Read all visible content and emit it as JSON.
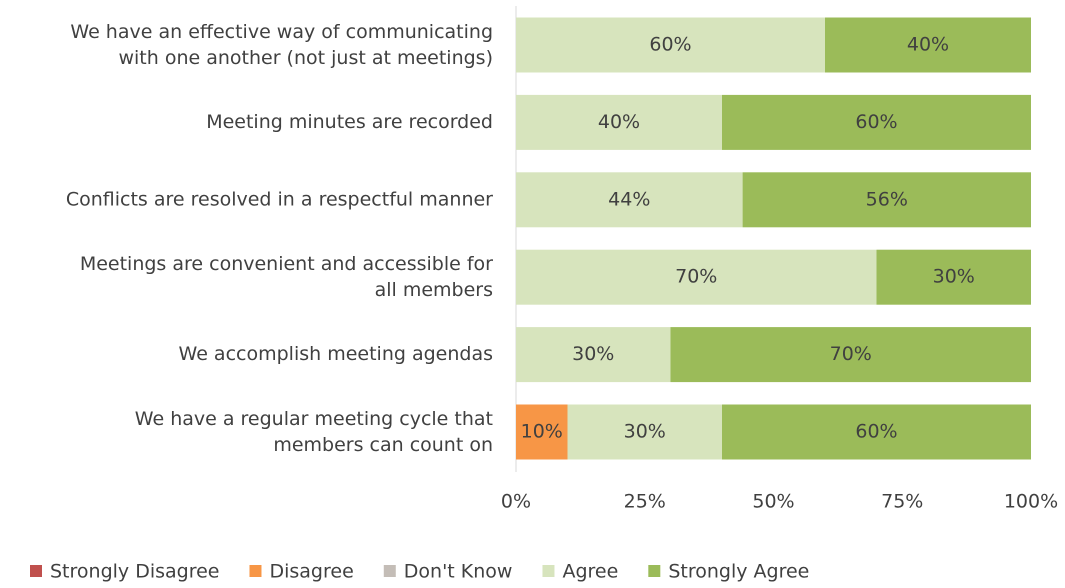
{
  "chart_data": {
    "type": "stacked-bar-horizontal",
    "categories": [
      "We have an effective way of communicating\nwith one another (not just at meetings)",
      "Meeting minutes are recorded",
      "Conflicts are resolved in a respectful manner",
      "Meetings are convenient and accessible for\nall members",
      "We accomplish meeting agendas",
      "We have a regular meeting cycle that\nmembers can count on"
    ],
    "series": [
      {
        "name": "Strongly Disagree",
        "color": "#c0504d",
        "values": [
          0,
          0,
          0,
          0,
          0,
          0
        ],
        "value_labels": [
          null,
          null,
          null,
          null,
          null,
          null
        ]
      },
      {
        "name": "Disagree",
        "color": "#f79646",
        "values": [
          0,
          0,
          0,
          0,
          0,
          10
        ],
        "value_labels": [
          null,
          null,
          null,
          null,
          null,
          "10%"
        ]
      },
      {
        "name": "Don't Know",
        "color": "#c4bdb7",
        "values": [
          0,
          0,
          0,
          0,
          0,
          0
        ],
        "value_labels": [
          null,
          null,
          null,
          null,
          null,
          null
        ]
      },
      {
        "name": "Agree",
        "color": "#d7e4bd",
        "values": [
          60,
          40,
          44,
          70,
          30,
          30
        ],
        "value_labels": [
          "60%",
          "40%",
          "44%",
          "70%",
          "30%",
          "30%"
        ]
      },
      {
        "name": "Strongly Agree",
        "color": "#9bbb59",
        "values": [
          40,
          60,
          56,
          30,
          70,
          60
        ],
        "value_labels": [
          "40%",
          "60%",
          "56%",
          "30%",
          "70%",
          "60%"
        ]
      }
    ],
    "xlim": [
      0,
      100
    ],
    "xticks": [
      {
        "value": 0,
        "label": "0%"
      },
      {
        "value": 25,
        "label": "25%"
      },
      {
        "value": 50,
        "label": "50%"
      },
      {
        "value": 75,
        "label": "75%"
      },
      {
        "value": 100,
        "label": "100%"
      }
    ],
    "legend": "bottom"
  }
}
